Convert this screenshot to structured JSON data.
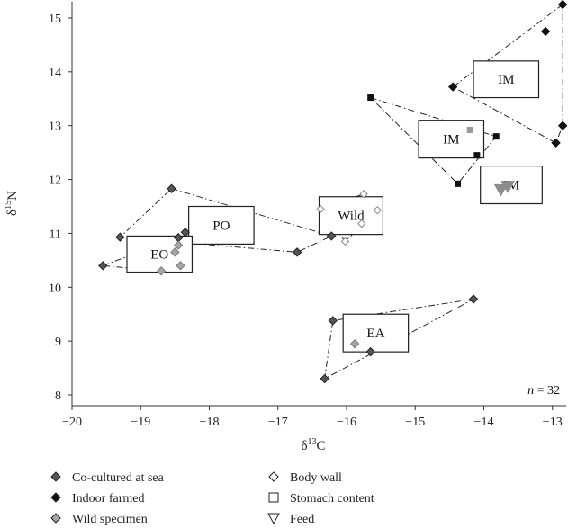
{
  "chart_data": {
    "type": "scatter",
    "xlabel": "δ13C",
    "ylabel": "δ15N",
    "x_label_parts": [
      "δ",
      "13",
      "C"
    ],
    "y_label_parts": [
      "δ",
      "15",
      "N"
    ],
    "xlim": [
      -20,
      -12.8
    ],
    "ylim": [
      7.8,
      15.3
    ],
    "x_ticks": [
      -20,
      -19,
      -18,
      -17,
      -16,
      -15,
      -14,
      -13
    ],
    "x_tick_labels": [
      "−20",
      "−19",
      "−18",
      "−17",
      "−16",
      "−15",
      "−14",
      "−13"
    ],
    "y_ticks": [
      8,
      9,
      10,
      11,
      12,
      13,
      14,
      15
    ],
    "y_tick_labels": [
      "8",
      "9",
      "10",
      "11",
      "12",
      "13",
      "14",
      "15"
    ],
    "annotation": "n = 32",
    "annotation_parts": [
      "n",
      " = 32"
    ],
    "colors": {
      "co_cultured": "#555555",
      "indoor": "#111111",
      "wild": "#a6a6a6",
      "feed": "#8c8c8c"
    },
    "groups": [
      {
        "label": "IM",
        "kind": "indoor-body-wall",
        "points": [
          [
            -12.85,
            15.25
          ],
          [
            -13.1,
            14.75
          ],
          [
            -14.45,
            13.72
          ],
          [
            -12.85,
            13.0
          ],
          [
            -12.95,
            12.68
          ]
        ],
        "hull": [
          [
            -12.85,
            15.25
          ],
          [
            -14.45,
            13.72
          ],
          [
            -12.95,
            12.68
          ],
          [
            -12.85,
            13.0
          ]
        ],
        "box": [
          -14.15,
          13.52,
          -13.2,
          14.2
        ]
      },
      {
        "label": "IM",
        "kind": "indoor-stomach",
        "points": [
          [
            -15.65,
            13.52
          ],
          [
            -13.82,
            12.8
          ],
          [
            -14.1,
            12.45
          ],
          [
            -14.38,
            11.92
          ]
        ],
        "gray_points": [
          [
            -14.2,
            12.92
          ]
        ],
        "hull": [
          [
            -15.65,
            13.52
          ],
          [
            -13.82,
            12.8
          ],
          [
            -14.38,
            11.92
          ]
        ],
        "box": [
          -14.95,
          12.4,
          -14.0,
          13.1
        ]
      },
      {
        "label": "IM",
        "kind": "feed",
        "points": [
          [
            -13.75,
            11.82
          ],
          [
            -13.65,
            11.88
          ]
        ],
        "box": [
          -14.05,
          11.55,
          -13.15,
          12.25
        ]
      },
      {
        "label": "PO",
        "kind": "co-cultured-body-wall",
        "points": [
          [
            -18.55,
            11.83
          ],
          [
            -16.22,
            10.95
          ],
          [
            -16.72,
            10.65
          ],
          [
            -19.3,
            10.93
          ],
          [
            -18.35,
            11.02
          ]
        ],
        "hull": [
          [
            -18.55,
            11.83
          ],
          [
            -16.22,
            10.95
          ],
          [
            -16.72,
            10.65
          ],
          [
            -19.3,
            10.93
          ]
        ],
        "box": [
          -18.3,
          10.8,
          -17.35,
          11.5
        ]
      },
      {
        "label": "Wild",
        "kind": "wild-body-wall",
        "points": [
          [
            -15.75,
            11.73
          ],
          [
            -15.55,
            11.43
          ],
          [
            -16.38,
            11.45
          ],
          [
            -15.78,
            11.18
          ],
          [
            -16.02,
            10.85
          ]
        ],
        "hull": [
          [
            -15.75,
            11.73
          ],
          [
            -15.55,
            11.43
          ],
          [
            -16.02,
            10.85
          ],
          [
            -16.38,
            11.45
          ]
        ],
        "box": [
          -16.4,
          10.98,
          -15.47,
          11.68
        ]
      },
      {
        "label": "EO",
        "kind": "co-cultured-stomach",
        "points": [
          [
            -19.55,
            10.4
          ],
          [
            -18.45,
            10.92
          ]
        ],
        "gray_points": [
          [
            -18.45,
            10.78
          ],
          [
            -18.5,
            10.65
          ],
          [
            -18.42,
            10.4
          ],
          [
            -18.7,
            10.3
          ]
        ],
        "hull": [
          [
            -19.55,
            10.4
          ],
          [
            -18.45,
            10.92
          ],
          [
            -18.7,
            10.3
          ]
        ],
        "box": [
          -19.2,
          10.28,
          -18.25,
          10.95
        ]
      },
      {
        "label": "EA",
        "kind": "co-cultured-low",
        "points": [
          [
            -14.15,
            9.78
          ],
          [
            -16.2,
            9.38
          ],
          [
            -15.65,
            8.8
          ],
          [
            -16.32,
            8.3
          ]
        ],
        "gray_points": [
          [
            -15.88,
            8.95
          ]
        ],
        "hull": [
          [
            -14.15,
            9.78
          ],
          [
            -16.2,
            9.38
          ],
          [
            -16.32,
            8.3
          ]
        ],
        "box": [
          -16.05,
          8.8,
          -15.1,
          9.5
        ]
      }
    ],
    "legend": [
      {
        "label": "Co-cultured at sea",
        "marker": "diamond-filled",
        "color": "#555555"
      },
      {
        "label": "Body wall",
        "marker": "diamond-open",
        "color": "#222222"
      },
      {
        "label": "Indoor farmed",
        "marker": "diamond-filled",
        "color": "#111111"
      },
      {
        "label": "Stomach content",
        "marker": "square-open",
        "color": "#222222"
      },
      {
        "label": "Wild specimen",
        "marker": "diamond-filled",
        "color": "#a6a6a6"
      },
      {
        "label": "Feed",
        "marker": "triangle-open",
        "color": "#222222"
      }
    ]
  }
}
